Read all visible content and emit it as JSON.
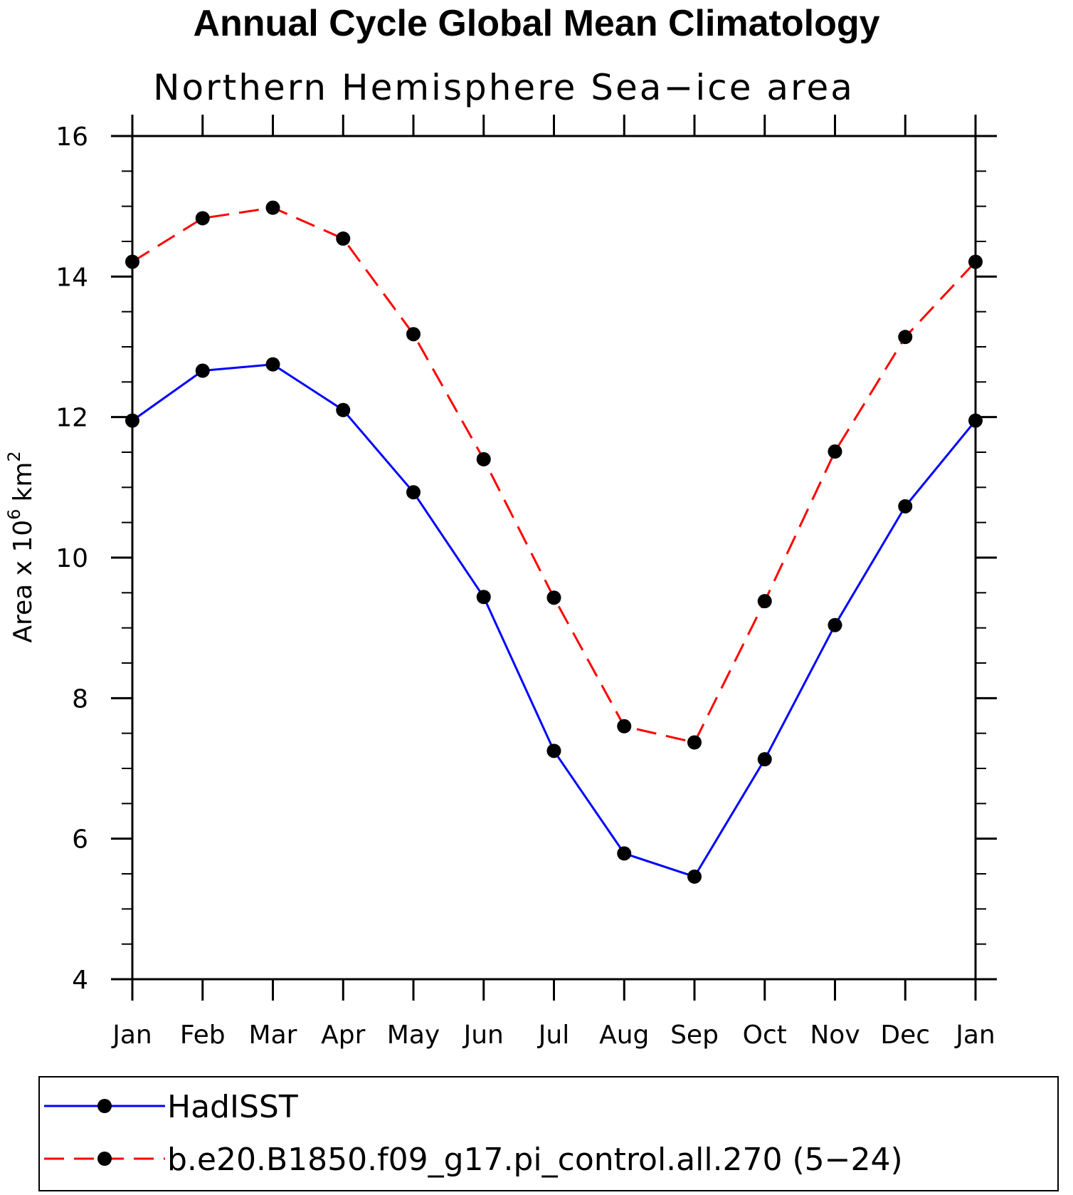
{
  "chart_data": {
    "type": "line",
    "title": "Annual Cycle Global Mean Climatology",
    "subtitle": "Northern Hemisphere Sea−ice area",
    "ylabel_main": "Area x 10",
    "ylabel_exp": "6",
    "ylabel_unit": "km",
    "ylabel_unit_exp": "2",
    "xlabel": "",
    "categories": [
      "Jan",
      "Feb",
      "Mar",
      "Apr",
      "May",
      "Jun",
      "Jul",
      "Aug",
      "Sep",
      "Oct",
      "Nov",
      "Dec",
      "Jan"
    ],
    "ylim": [
      4,
      16
    ],
    "yticks": [
      4,
      6,
      8,
      10,
      12,
      14,
      16
    ],
    "y_minor_step": 0.5,
    "series": [
      {
        "name": "HadISST",
        "color": "#0000ff",
        "dash": "solid",
        "values": [
          11.95,
          12.66,
          12.75,
          12.1,
          10.93,
          9.44,
          7.25,
          5.79,
          5.46,
          7.13,
          9.04,
          10.73,
          11.95
        ]
      },
      {
        "name": "b.e20.B1850.f09_g17.pi_control.all.270 (5−24)",
        "color": "#ff0000",
        "dash": "dashed",
        "values": [
          14.21,
          14.83,
          14.98,
          14.54,
          13.18,
          11.4,
          9.43,
          7.6,
          7.37,
          9.38,
          11.51,
          13.14,
          14.21
        ]
      }
    ],
    "marker_color": "#000000",
    "legend_position": "bottom"
  }
}
